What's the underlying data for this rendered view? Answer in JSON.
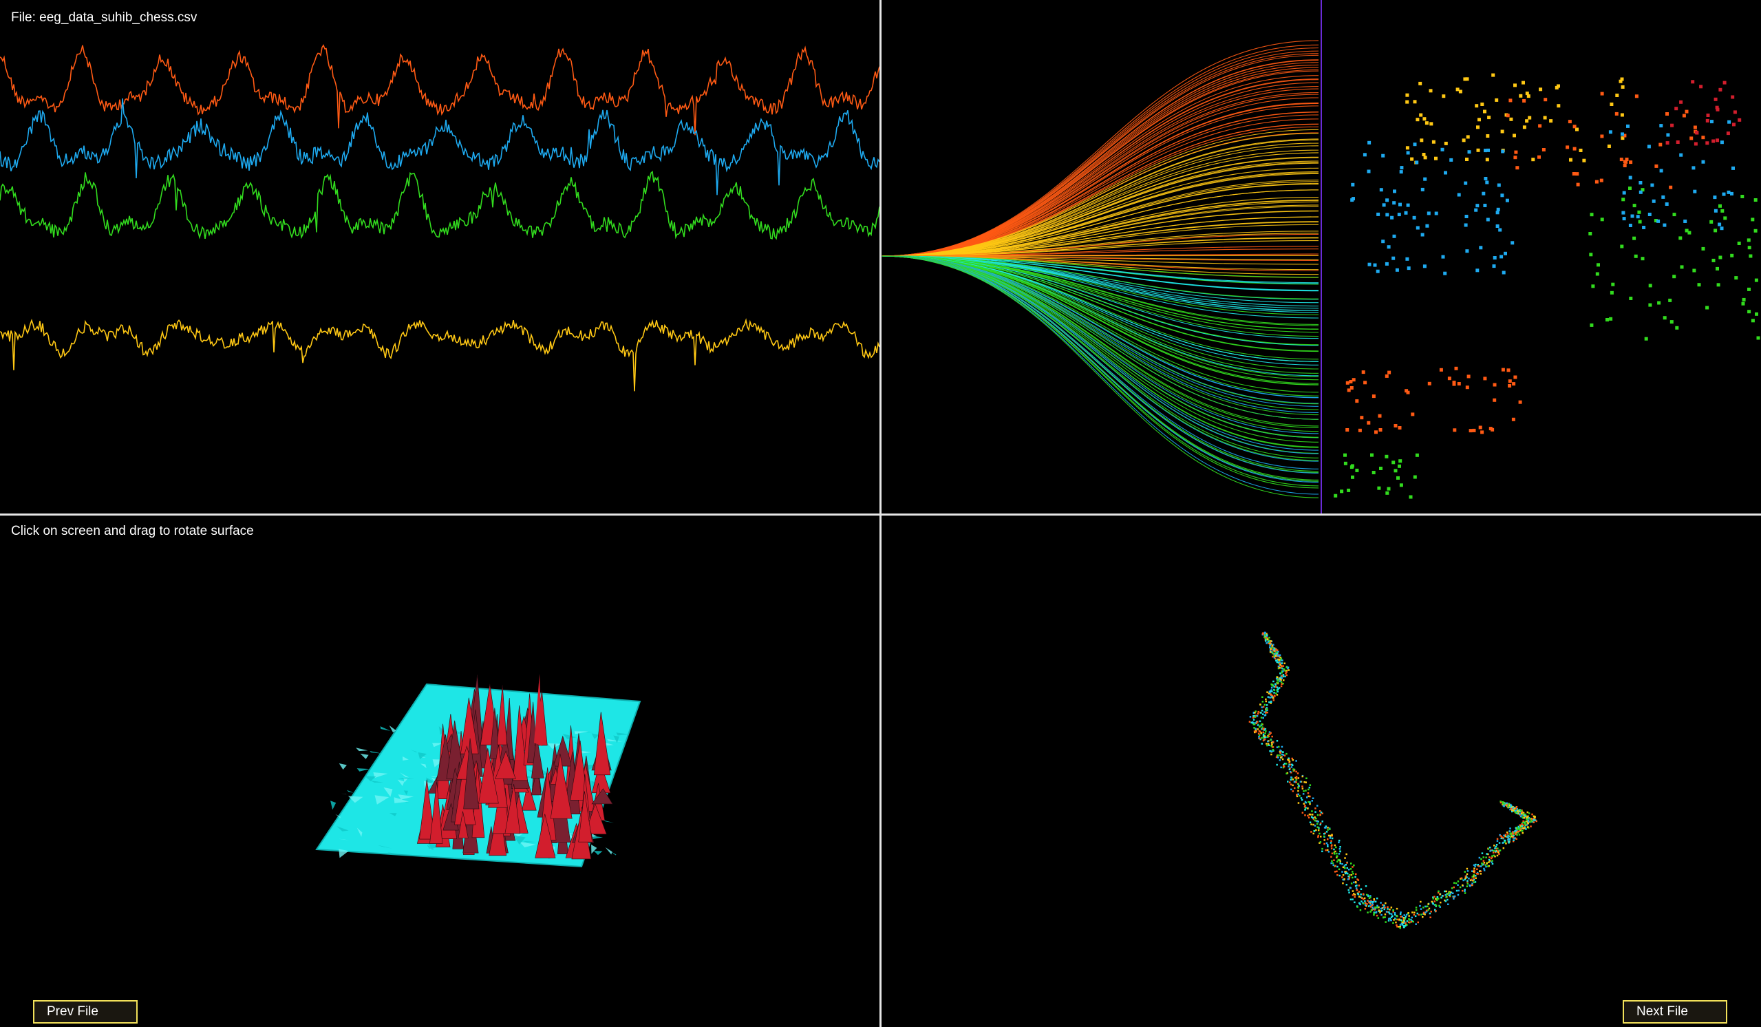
{
  "header": {
    "file_label": "File: eeg_data_suhib_chess.csv"
  },
  "surface_panel": {
    "hint": "Click on screen and drag to rotate surface"
  },
  "buttons": {
    "prev": "Prev File",
    "next": "Next File"
  },
  "colors": {
    "orange": "#ff5a14",
    "blue": "#1eaaf0",
    "green": "#32dc1e",
    "yellow": "#ffc814",
    "cyan": "#1ee6e6",
    "red": "#d21e2d",
    "divider": "#e6e6e6",
    "button_border": "#f2e15a"
  }
}
